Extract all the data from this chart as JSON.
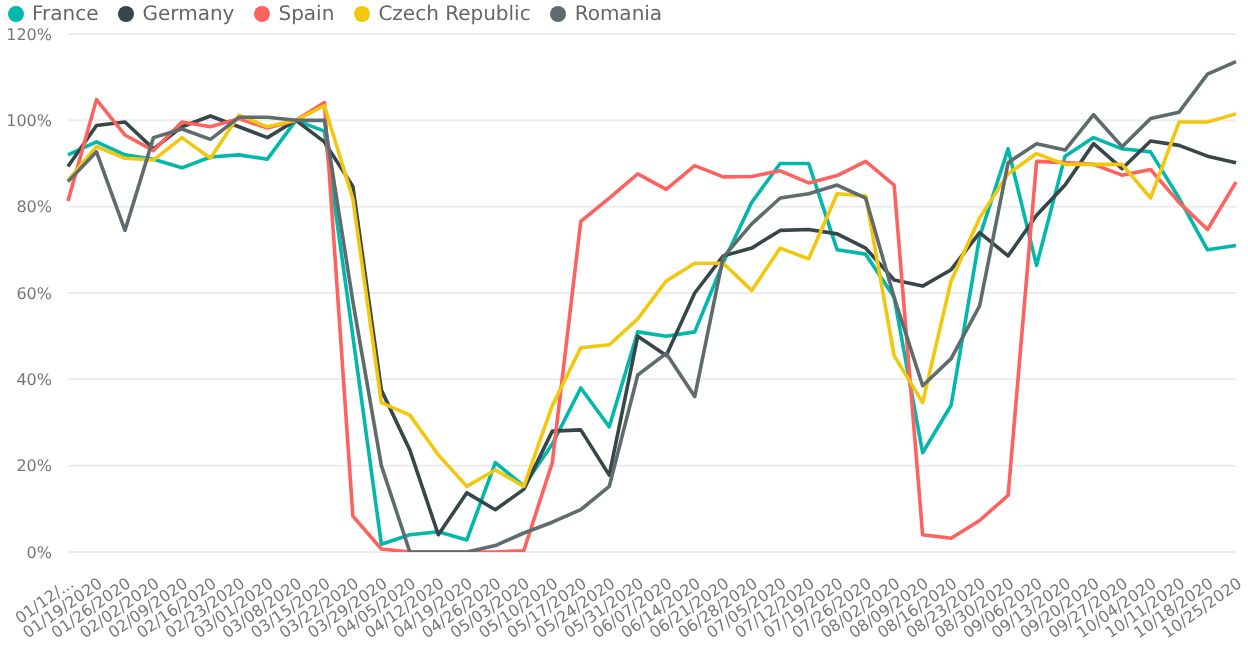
{
  "chart_data": {
    "type": "line",
    "categories": [
      "01/12/...",
      "01/19/2020",
      "01/26/2020",
      "02/02/2020",
      "02/09/2020",
      "02/16/2020",
      "02/23/2020",
      "03/01/2020",
      "03/08/2020",
      "03/15/2020",
      "03/22/2020",
      "03/29/2020",
      "04/05/2020",
      "04/12/2020",
      "04/19/2020",
      "04/26/2020",
      "05/03/2020",
      "05/10/2020",
      "05/17/2020",
      "05/24/2020",
      "05/31/2020",
      "06/07/2020",
      "06/14/2020",
      "06/21/2020",
      "06/28/2020",
      "07/05/2020",
      "07/12/2020",
      "07/19/2020",
      "07/26/2020",
      "08/02/2020",
      "08/09/2020",
      "08/16/2020",
      "08/23/2020",
      "08/30/2020",
      "09/06/2020",
      "09/13/2020",
      "09/20/2020",
      "09/27/2020",
      "10/04/2020",
      "10/11/2020",
      "10/18/2020",
      "10/25/2020"
    ],
    "series": [
      {
        "name": "France",
        "color": "#01b8aa",
        "values": [
          92,
          95,
          92,
          91,
          89,
          91.5,
          92,
          91,
          100,
          97.5,
          50,
          1.8,
          4,
          4.7,
          2.8,
          20.7,
          15.3,
          25,
          38,
          29,
          51,
          50,
          51,
          67,
          81,
          90,
          90,
          70,
          69,
          59,
          23,
          34,
          73,
          93.4,
          66.4,
          91.7,
          96,
          93.4,
          92.7,
          82,
          70,
          71
        ]
      },
      {
        "name": "Germany",
        "color": "#374649",
        "values": [
          89.3,
          98.8,
          99.6,
          93.4,
          98.5,
          101,
          98.5,
          96,
          100,
          95,
          84.7,
          37.5,
          23.6,
          4,
          13.7,
          9.8,
          14.5,
          28,
          28.3,
          17.8,
          50,
          45.5,
          60,
          68.6,
          70.4,
          74.5,
          74.7,
          73.7,
          70.4,
          63,
          61.6,
          65.4,
          74,
          68.6,
          78,
          85,
          94.6,
          88.8,
          95.2,
          94.2,
          91.7,
          90.2
        ]
      },
      {
        "name": "Spain",
        "color": "#fd625e",
        "values": [
          81.3,
          104.8,
          96.6,
          93,
          99.6,
          98.5,
          100.4,
          98.2,
          100,
          104.1,
          8.3,
          0.7,
          0,
          0,
          0,
          0,
          0.3,
          20.7,
          76.6,
          82,
          87.6,
          84,
          89.5,
          86.9,
          87,
          88.3,
          85.5,
          87.2,
          90.5,
          85,
          4,
          3.2,
          7.3,
          13.1,
          90.5,
          90.2,
          89.8,
          87.3,
          88.6,
          81,
          74.7,
          85.7
        ]
      },
      {
        "name": "Czech Republic",
        "color": "#f2c80f",
        "values": [
          86.1,
          93.9,
          91.2,
          90.8,
          96,
          91.2,
          101.2,
          98.5,
          100,
          103.4,
          81.8,
          34.6,
          31.7,
          22.5,
          15.2,
          19,
          15.2,
          33.9,
          47.3,
          48,
          54,
          62.8,
          66.9,
          66.9,
          60.6,
          70.4,
          67.9,
          83,
          82.5,
          45.5,
          34.6,
          62.8,
          77.4,
          87.6,
          92.3,
          89.8,
          89.8,
          89.8,
          82,
          99.6,
          99.6,
          101.5
        ]
      },
      {
        "name": "Romania",
        "color": "#5f6b6d",
        "values": [
          85.8,
          92.7,
          74.5,
          96,
          98,
          95.6,
          100.7,
          100.7,
          100,
          100,
          58,
          20,
          0,
          0,
          0,
          1.5,
          4.4,
          6.9,
          9.8,
          15.2,
          41,
          46,
          36,
          68.3,
          76,
          82,
          83,
          85,
          82,
          59,
          38.5,
          44.8,
          57,
          90.2,
          94.6,
          93.1,
          101.3,
          93.9,
          100.4,
          101.9,
          110.7,
          113.6
        ]
      }
    ],
    "ylim": [
      0,
      120
    ],
    "yticks": [
      {
        "value": 0,
        "label": "0%"
      },
      {
        "value": 20,
        "label": "20%"
      },
      {
        "value": 40,
        "label": "40%"
      },
      {
        "value": 60,
        "label": "60%"
      },
      {
        "value": 80,
        "label": "80%"
      },
      {
        "value": 100,
        "label": "100%"
      },
      {
        "value": 120,
        "label": "120%"
      }
    ],
    "grid": "y",
    "legend": "top left",
    "marker": "none",
    "line_style": "solid"
  }
}
